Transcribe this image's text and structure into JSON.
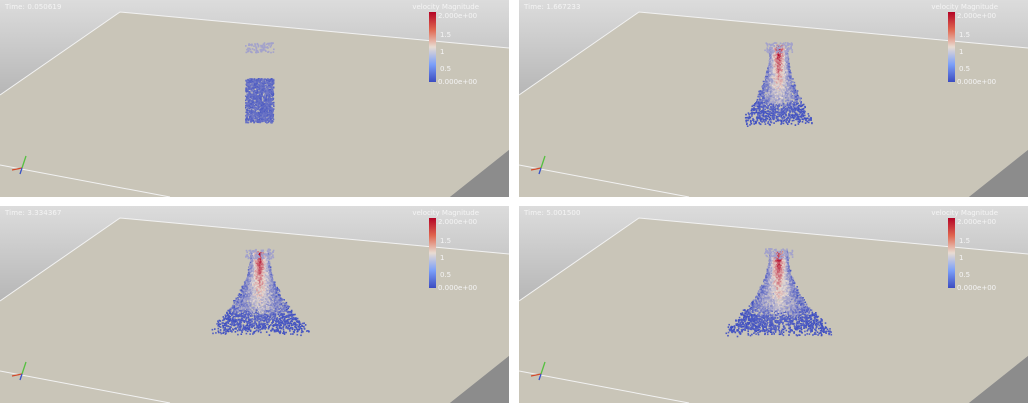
{
  "colors": {
    "high": "#b40426",
    "mid": "#e8dcd2",
    "low": "#3b4cc0",
    "plane": "#c9c5b8",
    "background_top": "#dcdcdc",
    "background_bottom": "#8e8e8e"
  },
  "colorbar": {
    "title": "velocity Magnitude",
    "max_label": "2.000e+00",
    "tick_15": "1.5",
    "tick_1": "1",
    "tick_05": "0.5",
    "min_label": "0.000e+00"
  },
  "panels": [
    {
      "time_label": "Time: 0.050619",
      "spread": 0.0
    },
    {
      "time_label": "Time: 1.667233",
      "spread": 0.45
    },
    {
      "time_label": "Time: 3.334367",
      "spread": 0.85
    },
    {
      "time_label": "Time: 5.001500",
      "spread": 1.0
    }
  ]
}
